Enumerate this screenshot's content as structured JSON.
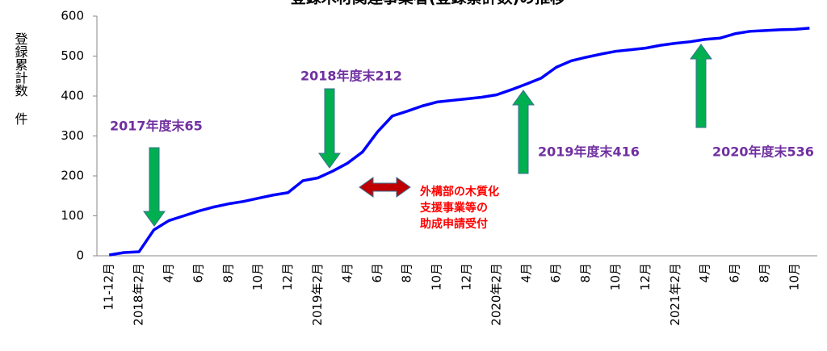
{
  "chart_data": {
    "type": "line",
    "title": "登録木材関連事業者(登録累計数)の推移",
    "y_label": "登録累計数 件",
    "categories": [
      "11-12月",
      null,
      "2018年2月",
      null,
      "4月",
      null,
      "6月",
      null,
      "8月",
      null,
      "10月",
      null,
      "12月",
      null,
      "2019年2月",
      null,
      "4月",
      null,
      "6月",
      null,
      "8月",
      null,
      "10月",
      null,
      "12月",
      null,
      "2020年2月",
      null,
      "4月",
      null,
      "6月",
      null,
      "8月",
      null,
      "10月",
      null,
      "12月",
      null,
      "2021年2月",
      null,
      "4月",
      null,
      "6月",
      null,
      "8月",
      null,
      "10月",
      null
    ],
    "series": [
      {
        "name": "登録累計数",
        "color": "#0000ff",
        "values": [
          2,
          8,
          10,
          65,
          88,
          100,
          112,
          122,
          130,
          136,
          144,
          152,
          158,
          188,
          195,
          212,
          232,
          260,
          310,
          350,
          362,
          375,
          385,
          389,
          393,
          397,
          403,
          416,
          430,
          445,
          472,
          488,
          497,
          505,
          512,
          516,
          520,
          527,
          532,
          536,
          542,
          545,
          556,
          562,
          564,
          566,
          567,
          570
        ]
      }
    ],
    "ylim": [
      0,
      600
    ],
    "yticks": [
      0,
      100,
      200,
      300,
      400,
      500,
      600
    ],
    "grid": false,
    "annotations": [
      "2017年度末65",
      "2018年度末212",
      "2019年度末416",
      "2020年度末536"
    ],
    "note_lines": [
      "外構部の木質化",
      "支援事業等の",
      "助成申請受付"
    ]
  }
}
